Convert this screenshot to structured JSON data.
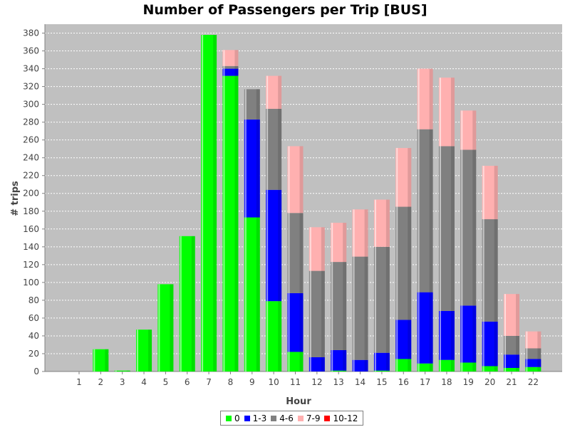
{
  "chart_data": {
    "type": "bar",
    "stacked": true,
    "title": "Number of Passengers per Trip [BUS]",
    "xlabel": "Hour",
    "ylabel": "# trips",
    "ylim": [
      0,
      390
    ],
    "yticks": [
      0,
      20,
      40,
      60,
      80,
      100,
      120,
      140,
      160,
      180,
      200,
      220,
      240,
      260,
      280,
      300,
      320,
      340,
      360,
      380
    ],
    "grid": true,
    "background": "#c0c0c0",
    "legend_position": "bottom",
    "categories": [
      "1",
      "2",
      "3",
      "4",
      "5",
      "6",
      "7",
      "8",
      "9",
      "10",
      "11",
      "12",
      "13",
      "14",
      "15",
      "16",
      "17",
      "18",
      "19",
      "20",
      "21",
      "22"
    ],
    "series": [
      {
        "name": "0",
        "color": "#00ff00",
        "values": [
          0,
          25,
          1,
          47,
          98,
          152,
          378,
          332,
          173,
          79,
          22,
          0,
          1,
          0,
          1,
          14,
          9,
          13,
          10,
          6,
          4,
          5
        ]
      },
      {
        "name": "1-3",
        "color": "#0000ff",
        "values": [
          0,
          0,
          0,
          0,
          0,
          0,
          0,
          8,
          110,
          125,
          66,
          16,
          23,
          13,
          20,
          44,
          80,
          55,
          64,
          50,
          15,
          9
        ]
      },
      {
        "name": "4-6",
        "color": "#808080",
        "values": [
          0,
          0,
          0,
          0,
          0,
          0,
          0,
          3,
          34,
          91,
          90,
          97,
          99,
          116,
          119,
          127,
          183,
          185,
          175,
          115,
          21,
          12
        ]
      },
      {
        "name": "7-9",
        "color": "#ffb0b0",
        "values": [
          0,
          0,
          0,
          0,
          0,
          0,
          0,
          18,
          0,
          37,
          75,
          49,
          44,
          53,
          53,
          66,
          68,
          77,
          44,
          60,
          47,
          19
        ]
      },
      {
        "name": "10-12",
        "color": "#ff0000",
        "values": [
          0,
          0,
          0,
          0,
          0,
          0,
          0,
          0,
          0,
          0,
          0,
          0,
          0,
          0,
          0,
          0,
          0,
          0,
          0,
          0,
          0,
          0
        ]
      }
    ]
  }
}
